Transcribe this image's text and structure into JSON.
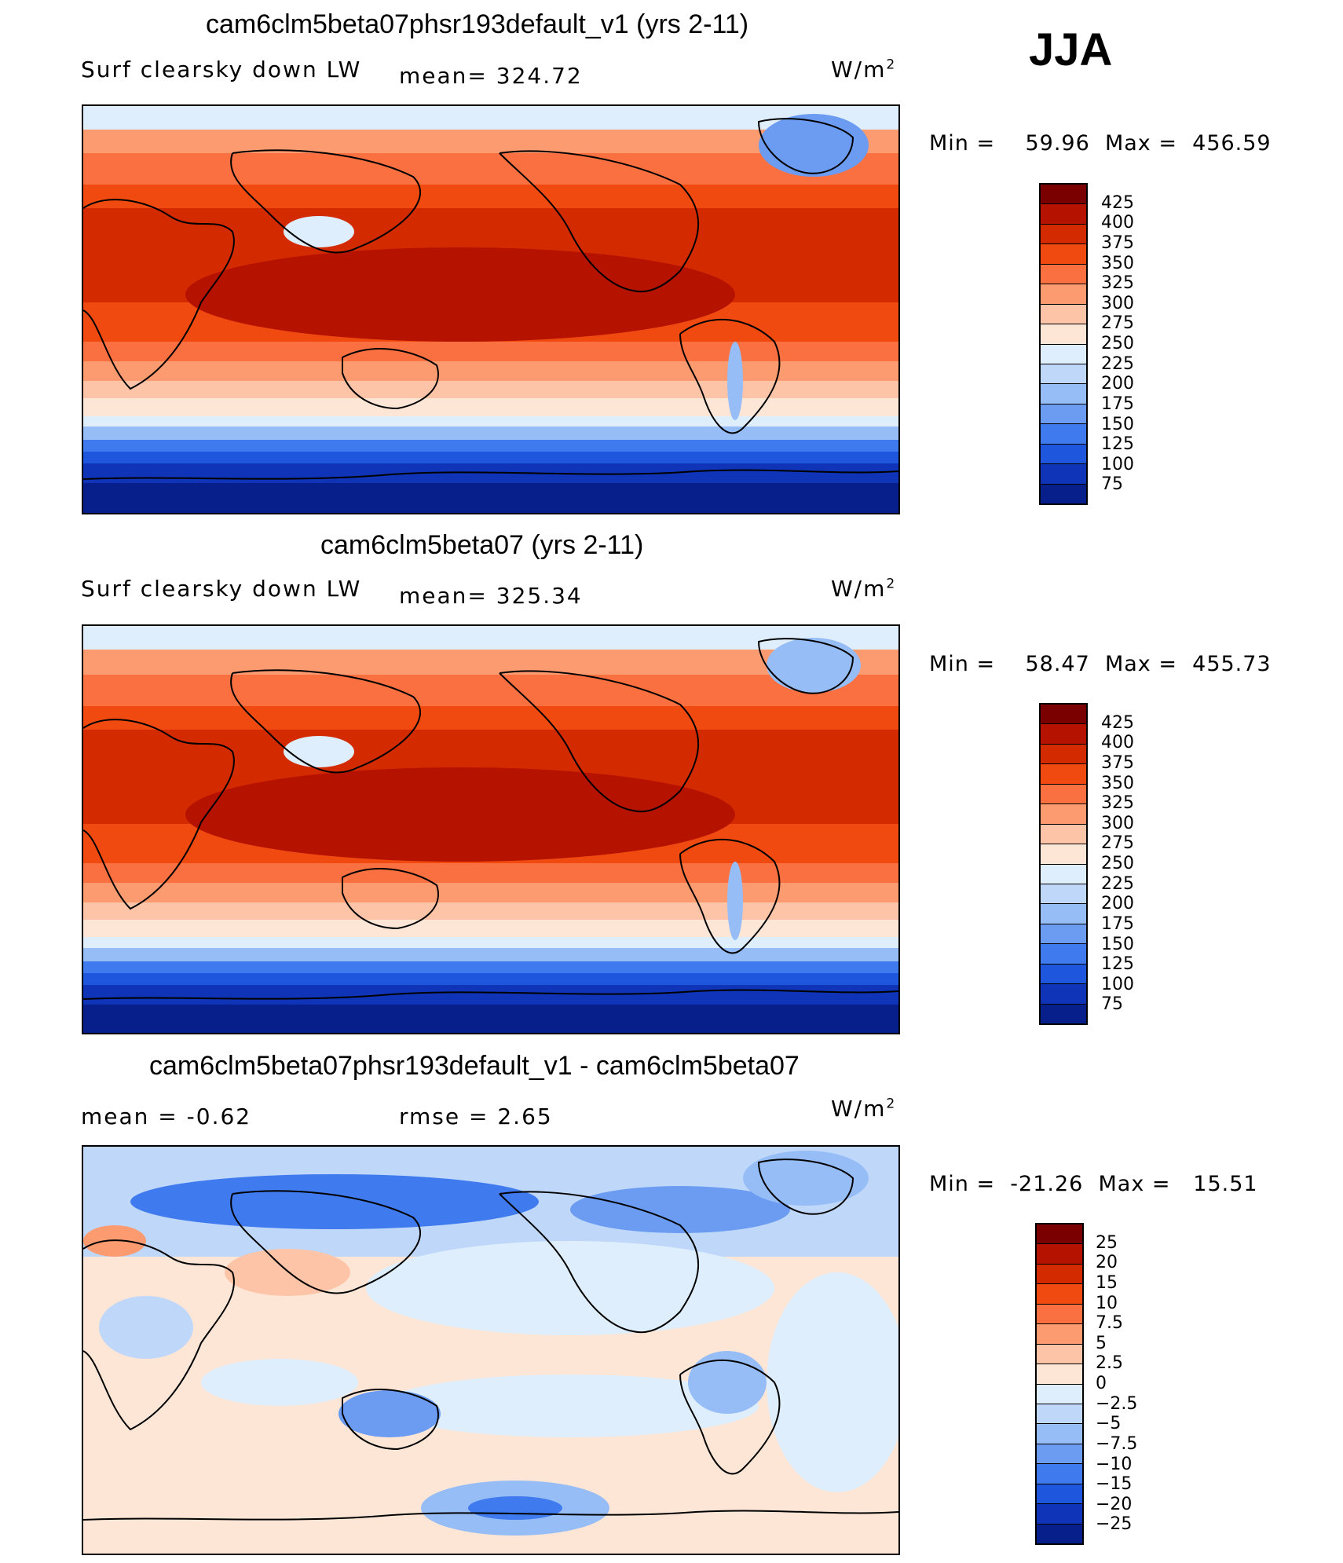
{
  "season": "JJA",
  "units_base": "W/m",
  "units_exp": "2",
  "panels": [
    {
      "title": "cam6clm5beta07phsr193default_v1 (yrs 2-11)",
      "left_label": "Surf clearsky down LW",
      "center_label": "mean=  324.72",
      "min_label": "Min =",
      "min_value": "59.96",
      "max_label": "Max =",
      "max_value": "456.59"
    },
    {
      "title": "cam6clm5beta07 (yrs 2-11)",
      "left_label": "Surf clearsky down LW",
      "center_label": "mean=  325.34",
      "min_label": "Min =",
      "min_value": "58.47",
      "max_label": "Max =",
      "max_value": "455.73"
    },
    {
      "title": "cam6clm5beta07phsr193default_v1 - cam6clm5beta07",
      "left_label": "mean =   -0.62",
      "center_label": "rmse =    2.65",
      "min_label": "Min =",
      "min_value": "-21.26",
      "max_label": "Max =",
      "max_value": "15.51"
    }
  ],
  "colorbars": {
    "field": {
      "labels": [
        "425",
        "400",
        "375",
        "350",
        "325",
        "300",
        "275",
        "250",
        "225",
        "200",
        "175",
        "150",
        "125",
        "100",
        "75"
      ],
      "colors": [
        "#7a0000",
        "#b51200",
        "#d42a00",
        "#f04a10",
        "#fa7040",
        "#fc9a70",
        "#fdc4a8",
        "#fde6d6",
        "#deeefc",
        "#bfd8fa",
        "#97bdf7",
        "#6b9cf2",
        "#3f7aee",
        "#1f56de",
        "#0f34b8",
        "#061f8a"
      ]
    },
    "diff": {
      "labels": [
        "25",
        "20",
        "15",
        "10",
        "7.5",
        "5",
        "2.5",
        "0",
        "−2.5",
        "−5",
        "−7.5",
        "−10",
        "−15",
        "−20",
        "−25"
      ],
      "colors": [
        "#7a0000",
        "#b51200",
        "#d42a00",
        "#f04a10",
        "#fa7040",
        "#fc9a70",
        "#fdc4a8",
        "#fde6d6",
        "#deeefc",
        "#bfd8fa",
        "#97bdf7",
        "#6b9cf2",
        "#3f7aee",
        "#1f56de",
        "#0f34b8",
        "#061f8a"
      ]
    }
  }
}
